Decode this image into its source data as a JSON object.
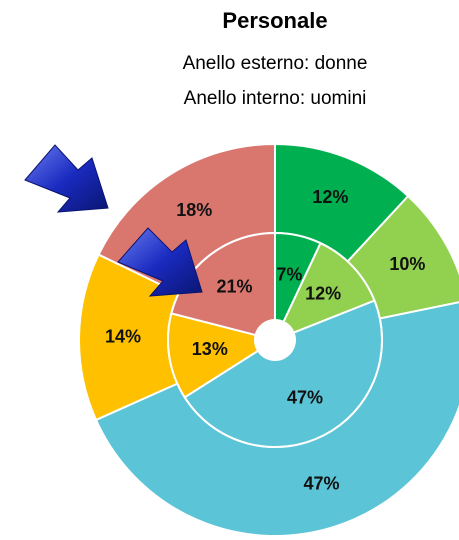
{
  "chart_data": {
    "type": "donut",
    "title": "Personale",
    "subtitle": [
      "Anello esterno: donne",
      "Anello interno: uomini"
    ],
    "colors": [
      "#00b050",
      "#92d050",
      "#5bc4d6",
      "#ffc000",
      "#d9776e"
    ],
    "rings": [
      {
        "values": [
          12,
          10,
          47,
          14,
          18
        ],
        "value_labels": [
          "12%",
          "10%",
          "47%",
          "14%",
          "18%"
        ]
      },
      {
        "values": [
          7,
          12,
          47,
          13,
          21
        ],
        "value_labels": [
          "7%",
          "12%",
          "47%",
          "13%",
          "21%"
        ]
      }
    ]
  }
}
